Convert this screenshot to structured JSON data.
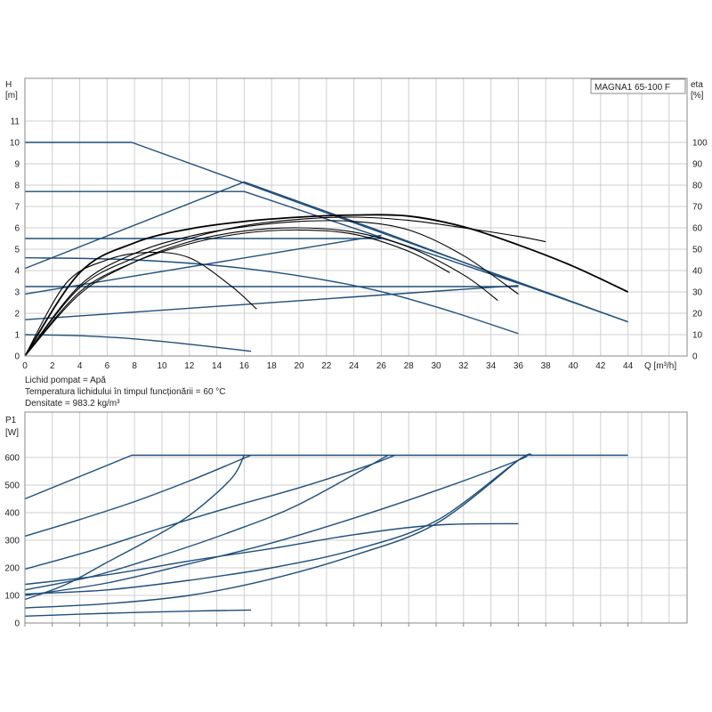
{
  "chart_data": [
    {
      "type": "line",
      "title": "MAGNA1 65-100 F",
      "ylabel_top": "H",
      "ylabel_unit": "[m]",
      "y2label_top": "eta",
      "y2label_unit": "[%]",
      "xlabel": "Q [m³/h]",
      "xlim": [
        0,
        45
      ],
      "ylim": [
        0,
        12
      ],
      "y2lim": [
        0,
        120
      ],
      "x_ticks": [
        0,
        2,
        4,
        6,
        8,
        10,
        12,
        14,
        16,
        18,
        20,
        22,
        24,
        26,
        28,
        30,
        32,
        34,
        36,
        38,
        40,
        42,
        44
      ],
      "y_ticks": [
        0,
        1,
        2,
        3,
        4,
        5,
        6,
        7,
        8,
        9,
        10,
        11
      ],
      "y2_ticks": [
        0,
        10,
        20,
        30,
        40,
        50,
        60,
        70,
        80,
        90,
        100
      ],
      "grid": true,
      "series": [
        {
          "color": "#1f4e79",
          "x": [
            0,
            7.8,
            44
          ],
          "y": [
            10,
            10,
            1.6
          ]
        },
        {
          "color": "#1f4e79",
          "x": [
            0,
            16,
            36.5,
            44
          ],
          "y": [
            7.7,
            7.7,
            3.3,
            1.6
          ]
        },
        {
          "color": "#1f4e79",
          "x": [
            0,
            16,
            27,
            36.5
          ],
          "y": [
            4.1,
            8.15,
            5.6,
            3.3
          ]
        },
        {
          "color": "#1f4e79",
          "x": [
            0,
            26
          ],
          "y": [
            5.5,
            5.5
          ]
        },
        {
          "color": "#1f4e79",
          "x": [
            0,
            26
          ],
          "y": [
            2.9,
            5.65
          ]
        },
        {
          "color": "#1f4e79",
          "x": [
            0,
            36
          ],
          "y": [
            3.25,
            3.25
          ]
        },
        {
          "color": "#1f4e79",
          "x": [
            0,
            36
          ],
          "y": [
            1.7,
            3.3
          ]
        },
        {
          "color": "#1f4e79",
          "x": [
            0,
            8,
            16,
            24,
            30,
            36
          ],
          "y": [
            4.6,
            4.5,
            4.1,
            3.3,
            2.3,
            1.05
          ]
        },
        {
          "color": "#1f4e79",
          "x": [
            0,
            4,
            8,
            12,
            16.5
          ],
          "y": [
            1.0,
            0.95,
            0.8,
            0.55,
            0.22
          ]
        },
        {
          "color": "#000000",
          "x": [
            0,
            4,
            8,
            12,
            16,
            20,
            24,
            28,
            32,
            36,
            40,
            44
          ],
          "y": [
            0,
            3.9,
            5.3,
            5.95,
            6.3,
            6.5,
            6.6,
            6.55,
            6.05,
            5.2,
            4.2,
            3.0
          ]
        },
        {
          "color": "#000000",
          "x": [
            0,
            4,
            8,
            12,
            16,
            20,
            24,
            28,
            32,
            36,
            38
          ],
          "y": [
            0,
            3.2,
            4.6,
            5.5,
            6.1,
            6.4,
            6.5,
            6.35,
            6.0,
            5.6,
            5.35
          ]
        },
        {
          "color": "#000000",
          "x": [
            0,
            4,
            8,
            12,
            16,
            20,
            24,
            28,
            32,
            36
          ],
          "y": [
            0,
            3.3,
            4.8,
            5.6,
            6.05,
            6.3,
            6.3,
            5.9,
            4.7,
            2.9
          ]
        },
        {
          "color": "#000000",
          "x": [
            0,
            4,
            8,
            12,
            16,
            20,
            24,
            28,
            32,
            34.5
          ],
          "y": [
            0,
            2.9,
            4.4,
            5.35,
            5.85,
            6.0,
            5.8,
            5.1,
            3.8,
            2.6
          ]
        },
        {
          "color": "#000000",
          "x": [
            0,
            4,
            8,
            12,
            16,
            20,
            24,
            28,
            31
          ],
          "y": [
            0,
            3.0,
            4.4,
            5.25,
            5.75,
            5.9,
            5.7,
            4.9,
            3.9
          ]
        },
        {
          "color": "#000000",
          "x": [
            0,
            3,
            6,
            9,
            12,
            15,
            16.9
          ],
          "y": [
            0,
            3.4,
            4.5,
            4.85,
            4.6,
            3.3,
            2.2
          ]
        }
      ]
    },
    {
      "type": "line",
      "ylabel_top": "P1",
      "ylabel_unit": "[W]",
      "xlim": [
        0,
        45
      ],
      "ylim": [
        0,
        650
      ],
      "y_ticks": [
        0,
        100,
        200,
        300,
        400,
        500,
        600
      ],
      "grid": true,
      "series": [
        {
          "color": "#1f4e79",
          "x": [
            0,
            7.8,
            44
          ],
          "y": [
            450,
            608,
            608
          ]
        },
        {
          "color": "#1f4e79",
          "x": [
            0,
            4,
            8,
            12,
            16.5
          ],
          "y": [
            315,
            375,
            440,
            515,
            608
          ]
        },
        {
          "color": "#1f4e79",
          "x": [
            0,
            5,
            10,
            15,
            20,
            25,
            27
          ],
          "y": [
            195,
            265,
            345,
            420,
            490,
            570,
            608
          ]
        },
        {
          "color": "#1f4e79",
          "x": [
            0,
            6,
            12,
            18,
            24,
            30,
            36,
            36.5
          ],
          "y": [
            100,
            145,
            215,
            290,
            380,
            480,
            590,
            608
          ]
        },
        {
          "color": "#1f4e79",
          "x": [
            0,
            6,
            12,
            18,
            24,
            30,
            36
          ],
          "y": [
            55,
            70,
            100,
            160,
            245,
            360,
            590
          ]
        },
        {
          "color": "#1f4e79",
          "x": [
            0,
            5,
            10,
            15,
            20,
            26.5
          ],
          "y": [
            120,
            170,
            245,
            330,
            430,
            608
          ]
        },
        {
          "color": "#1f4e79",
          "x": [
            0,
            3,
            6,
            9,
            12,
            15,
            16
          ],
          "y": [
            85,
            140,
            220,
            300,
            390,
            520,
            608
          ]
        },
        {
          "color": "#1f4e79",
          "x": [
            0,
            6,
            12,
            18,
            24,
            30,
            36
          ],
          "y": [
            140,
            175,
            225,
            270,
            320,
            355,
            360
          ]
        },
        {
          "color": "#1f4e79",
          "x": [
            0,
            4,
            8,
            12,
            16.5
          ],
          "y": [
            25,
            32,
            38,
            43,
            47
          ]
        },
        {
          "color": "#1f4e79",
          "x": [
            0,
            6,
            12,
            18,
            24,
            30,
            36,
            37
          ],
          "y": [
            105,
            120,
            155,
            200,
            265,
            370,
            590,
            608
          ]
        }
      ]
    }
  ],
  "notes": {
    "liquid": "Lichid pompat = Apă",
    "temperature": "Temperatura lichidului în timpul funcționării = 60 °C",
    "density": "Densitate = 983.2 kg/m³"
  }
}
